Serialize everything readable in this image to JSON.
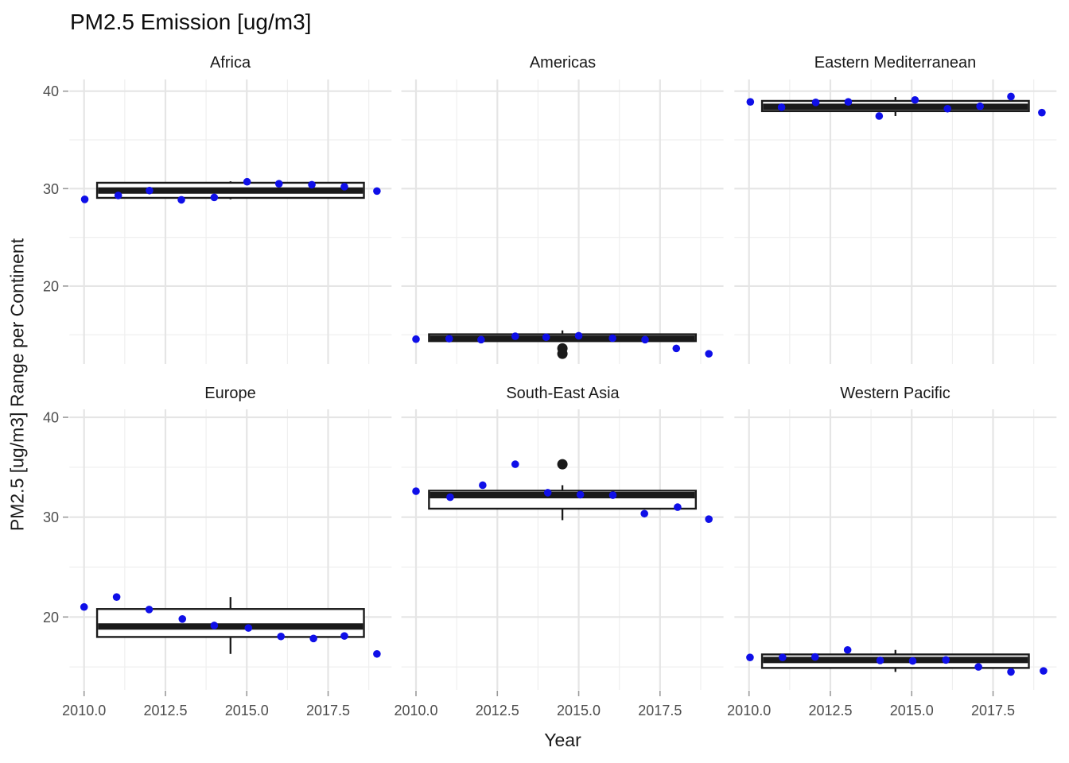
{
  "title": "PM2.5 Emission [ug/m3]",
  "axes": {
    "x_label": "Year",
    "y_label": "PM2.5 [ug/m3] Range per Continent",
    "x_tick_labels": [
      "2010.0",
      "2012.5",
      "2015.0",
      "2017.5"
    ],
    "y_tick_labels": [
      "40",
      "30",
      "20"
    ]
  },
  "chart_data": {
    "type": "boxplot",
    "subtype": "faceted boxplot with jittered points, 2 rows x 3 columns",
    "title": "PM2.5 Emission [ug/m3]",
    "xlabel": "Year",
    "ylabel": "PM2.5 [ug/m3] Range per Continent",
    "xlim": [
      2009.55,
      2019.45
    ],
    "ylim": [
      12.0,
      41.2
    ],
    "x_ticks": [
      2010.0,
      2012.5,
      2015.0,
      2017.5
    ],
    "x_tick_labels": [
      "2010.0",
      "2012.5",
      "2015.0",
      "2017.5"
    ],
    "x_minor_ticks": [
      2011.25,
      2013.75,
      2016.25,
      2018.75
    ],
    "y_ticks": [
      40,
      30,
      20
    ],
    "y_tick_labels": [
      "40",
      "30",
      "20"
    ],
    "y_minor_ticks": [
      35,
      25,
      15
    ],
    "grid": true,
    "legend": false,
    "point_color": "#0f0fe8",
    "box_color": "#1a1a1a",
    "outlier_color": "#1a1a1a",
    "grid_major_color": "#e5e5e5",
    "grid_minor_color": "#efefef",
    "tick_text_color": "#4d4d4d",
    "box_x_range": [
      2010.4,
      2018.6
    ],
    "box_center_x": 2014.5,
    "years": [
      2010,
      2011,
      2012,
      2013,
      2014,
      2015,
      2016,
      2017,
      2018,
      2019
    ],
    "panels": [
      {
        "title": "Africa",
        "row": 0,
        "col": 0,
        "points_x": [
          2010.02,
          2011.05,
          2012.01,
          2012.99,
          2014.0,
          2015.01,
          2015.99,
          2017.0,
          2018.0,
          2019.0
        ],
        "points_y": [
          28.9,
          29.3,
          29.8,
          28.85,
          29.1,
          30.7,
          30.5,
          30.4,
          30.2,
          29.75
        ],
        "box": {
          "q1": 29.05,
          "median": 29.8,
          "q3": 30.6,
          "whisker_low": 28.9,
          "whisker_high": 30.75,
          "outliers": []
        }
      },
      {
        "title": "Americas",
        "row": 0,
        "col": 1,
        "points_x": [
          2010.0,
          2011.02,
          2012.0,
          2013.05,
          2014.0,
          2015.0,
          2016.04,
          2017.04,
          2018.0,
          2019.0
        ],
        "points_y": [
          14.55,
          14.6,
          14.5,
          14.85,
          14.75,
          14.9,
          14.65,
          14.5,
          13.6,
          13.05
        ],
        "box": {
          "q1": 14.35,
          "median": 14.6,
          "q3": 15.05,
          "whisker_low": 14.3,
          "whisker_high": 15.45,
          "outliers": [
            13.6,
            13.05
          ]
        }
      },
      {
        "title": "Eastern Mediterranean",
        "row": 0,
        "col": 2,
        "points_x": [
          2010.04,
          2011.0,
          2012.05,
          2013.05,
          2014.0,
          2015.1,
          2016.1,
          2017.1,
          2018.05,
          2019.0
        ],
        "points_y": [
          38.9,
          38.35,
          38.85,
          38.9,
          37.45,
          39.1,
          38.2,
          38.45,
          39.45,
          37.8
        ],
        "box": {
          "q1": 37.95,
          "median": 38.4,
          "q3": 39.0,
          "whisker_low": 37.45,
          "whisker_high": 39.4,
          "outliers": []
        }
      },
      {
        "title": "Europe",
        "row": 1,
        "col": 0,
        "points_x": [
          2010.0,
          2011.0,
          2012.0,
          2013.02,
          2014.0,
          2015.05,
          2016.05,
          2017.05,
          2018.0,
          2019.0
        ],
        "points_y": [
          21.0,
          22.0,
          20.75,
          19.8,
          19.15,
          18.9,
          18.05,
          17.85,
          18.1,
          16.3
        ],
        "box": {
          "q1": 18.0,
          "median": 19.05,
          "q3": 20.8,
          "whisker_low": 16.3,
          "whisker_high": 22.0,
          "outliers": []
        }
      },
      {
        "title": "South-East Asia",
        "row": 1,
        "col": 1,
        "points_x": [
          2010.0,
          2011.05,
          2012.05,
          2013.05,
          2014.05,
          2015.05,
          2016.05,
          2017.02,
          2018.04,
          2019.0
        ],
        "points_y": [
          32.6,
          32.0,
          33.2,
          35.3,
          32.45,
          32.25,
          32.2,
          30.35,
          31.0,
          29.8
        ],
        "box": {
          "q1": 30.85,
          "median": 32.2,
          "q3": 32.65,
          "whisker_low": 29.7,
          "whisker_high": 33.2,
          "outliers": [
            35.3
          ]
        }
      },
      {
        "title": "Western Pacific",
        "row": 1,
        "col": 2,
        "points_x": [
          2010.03,
          2011.03,
          2012.03,
          2013.03,
          2014.03,
          2015.03,
          2016.05,
          2017.05,
          2018.05,
          2019.05
        ],
        "points_y": [
          15.95,
          15.95,
          16.0,
          16.7,
          15.65,
          15.6,
          15.7,
          15.0,
          14.5,
          14.6
        ],
        "box": {
          "q1": 14.9,
          "median": 15.7,
          "q3": 16.25,
          "whisker_low": 14.5,
          "whisker_high": 16.7,
          "outliers": []
        }
      }
    ]
  }
}
